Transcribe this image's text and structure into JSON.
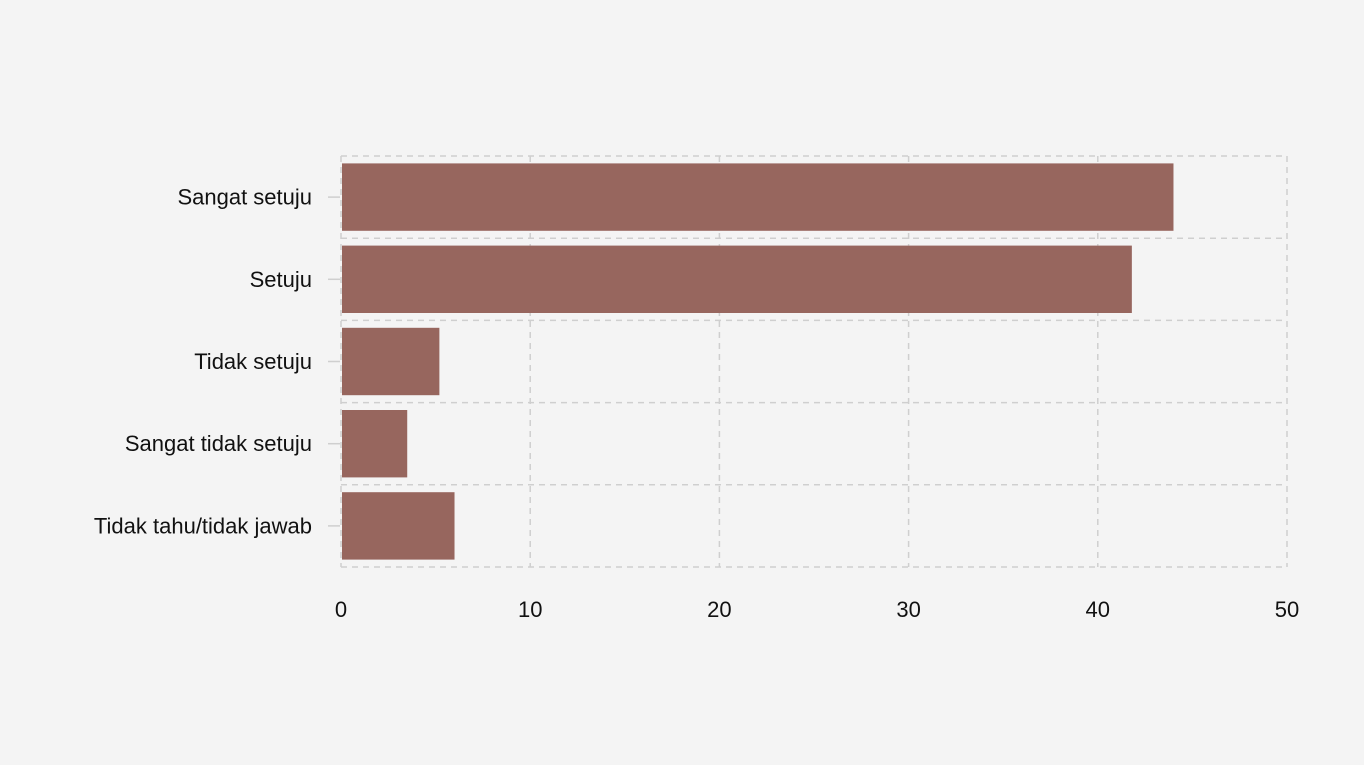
{
  "chart_data": {
    "type": "bar",
    "orientation": "horizontal",
    "title": "",
    "xlabel": "",
    "ylabel": "",
    "categories": [
      "Sangat setuju",
      "Setuju",
      "Tidak setuju",
      "Sangat tidak setuju",
      "Tidak tahu/tidak jawab"
    ],
    "values": [
      44,
      41.8,
      5.2,
      3.5,
      6
    ],
    "xlim": [
      0,
      50
    ],
    "xticks": [
      0,
      10,
      20,
      30,
      40,
      50
    ],
    "grid": true,
    "legend": "none",
    "bar_color": "#97665e",
    "grid_color": "#cfcfcf",
    "background_color": "#f4f4f4"
  }
}
